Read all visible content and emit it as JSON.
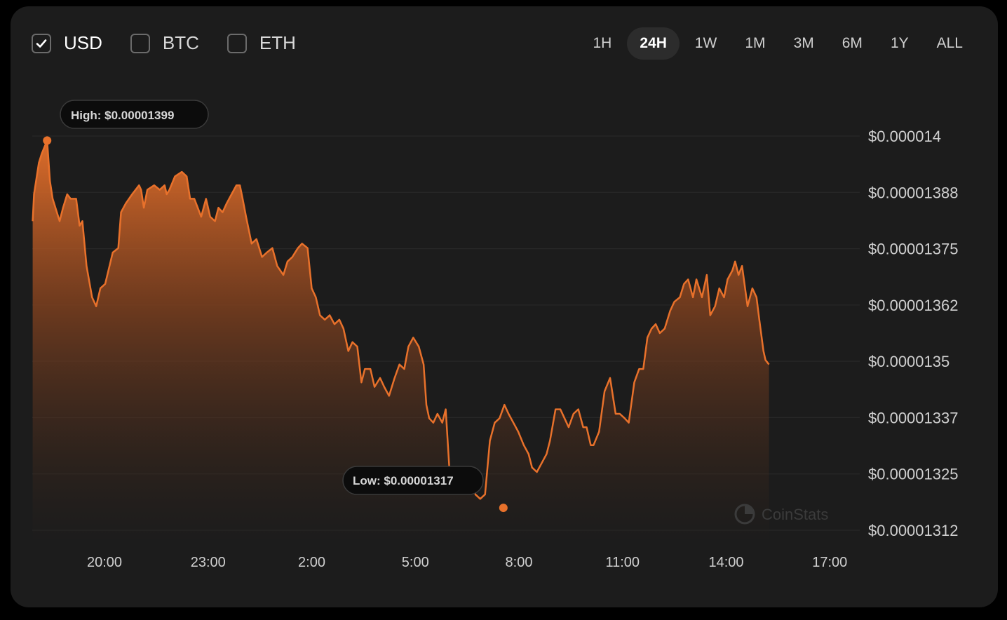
{
  "currencies": [
    {
      "label": "USD",
      "checked": true
    },
    {
      "label": "BTC",
      "checked": false
    },
    {
      "label": "ETH",
      "checked": false
    }
  ],
  "ranges": [
    "1H",
    "24H",
    "1W",
    "1M",
    "3M",
    "6M",
    "1Y",
    "ALL"
  ],
  "active_range": "24H",
  "watermark": "CoinStats",
  "colors": {
    "accent": "#e8712b",
    "card": "#1c1c1c",
    "background": "#000000"
  },
  "chart_data": {
    "type": "area",
    "title": "",
    "xlabel": "",
    "ylabel": "",
    "x_unit": "hours since 20:00",
    "x_ticks": [
      "20:00",
      "23:00",
      "2:00",
      "5:00",
      "8:00",
      "11:00",
      "14:00",
      "17:00"
    ],
    "y_ticks": [
      "$0.000014",
      "$0.00001388",
      "$0.00001375",
      "$0.00001362",
      "$0.0000135",
      "$0.00001337",
      "$0.00001325",
      "$0.00001312"
    ],
    "ylim": [
      1.312e-05,
      1.4e-05
    ],
    "high_label": "High: $0.00001399",
    "low_label": "Low: $0.00001317",
    "high": {
      "x": -1.66,
      "y": 1.399e-05
    },
    "low": {
      "x": 11.55,
      "y": 1.317e-05
    },
    "grid": true,
    "series": [
      {
        "color": "#e8712b",
        "points": [
          [
            -2.08,
            1.381e-05
          ],
          [
            -2.04,
            1.387e-05
          ],
          [
            -1.9,
            1.394e-05
          ],
          [
            -1.82,
            1.396e-05
          ],
          [
            -1.66,
            1.399e-05
          ],
          [
            -1.58,
            1.39e-05
          ],
          [
            -1.5,
            1.386e-05
          ],
          [
            -1.3,
            1.381e-05
          ],
          [
            -1.2,
            1.384e-05
          ],
          [
            -1.08,
            1.387e-05
          ],
          [
            -0.98,
            1.386e-05
          ],
          [
            -0.82,
            1.386e-05
          ],
          [
            -0.72,
            1.38e-05
          ],
          [
            -0.64,
            1.381e-05
          ],
          [
            -0.52,
            1.371e-05
          ],
          [
            -0.36,
            1.364e-05
          ],
          [
            -0.24,
            1.362e-05
          ],
          [
            -0.12,
            1.366e-05
          ],
          [
            0.02,
            1.367e-05
          ],
          [
            0.24,
            1.374e-05
          ],
          [
            0.4,
            1.375e-05
          ],
          [
            0.48,
            1.383e-05
          ],
          [
            0.62,
            1.385e-05
          ],
          [
            0.8,
            1.387e-05
          ],
          [
            1.0,
            1.389e-05
          ],
          [
            1.06,
            1.388e-05
          ],
          [
            1.14,
            1.384e-05
          ],
          [
            1.24,
            1.388e-05
          ],
          [
            1.44,
            1.389e-05
          ],
          [
            1.6,
            1.388e-05
          ],
          [
            1.74,
            1.389e-05
          ],
          [
            1.8,
            1.387e-05
          ],
          [
            1.88,
            1.388e-05
          ],
          [
            2.04,
            1.391e-05
          ],
          [
            2.24,
            1.392e-05
          ],
          [
            2.38,
            1.391e-05
          ],
          [
            2.48,
            1.386e-05
          ],
          [
            2.6,
            1.386e-05
          ],
          [
            2.8,
            1.382e-05
          ],
          [
            2.94,
            1.386e-05
          ],
          [
            3.06,
            1.382e-05
          ],
          [
            3.2,
            1.381e-05
          ],
          [
            3.3,
            1.384e-05
          ],
          [
            3.42,
            1.383e-05
          ],
          [
            3.54,
            1.385e-05
          ],
          [
            3.68,
            1.387e-05
          ],
          [
            3.82,
            1.389e-05
          ],
          [
            3.92,
            1.389e-05
          ],
          [
            4.0,
            1.386e-05
          ],
          [
            4.1,
            1.382e-05
          ],
          [
            4.26,
            1.376e-05
          ],
          [
            4.4,
            1.377e-05
          ],
          [
            4.56,
            1.373e-05
          ],
          [
            4.7,
            1.374e-05
          ],
          [
            4.86,
            1.375e-05
          ],
          [
            5.0,
            1.371e-05
          ],
          [
            5.18,
            1.369e-05
          ],
          [
            5.3,
            1.372e-05
          ],
          [
            5.44,
            1.373e-05
          ],
          [
            5.6,
            1.375e-05
          ],
          [
            5.72,
            1.376e-05
          ],
          [
            5.88,
            1.375e-05
          ],
          [
            6.0,
            1.366e-05
          ],
          [
            6.12,
            1.364e-05
          ],
          [
            6.24,
            1.36e-05
          ],
          [
            6.38,
            1.359e-05
          ],
          [
            6.52,
            1.36e-05
          ],
          [
            6.66,
            1.358e-05
          ],
          [
            6.8,
            1.359e-05
          ],
          [
            6.92,
            1.357e-05
          ],
          [
            7.06,
            1.352e-05
          ],
          [
            7.18,
            1.354e-05
          ],
          [
            7.32,
            1.353e-05
          ],
          [
            7.44,
            1.345e-05
          ],
          [
            7.54,
            1.348e-05
          ],
          [
            7.7,
            1.348e-05
          ],
          [
            7.82,
            1.344e-05
          ],
          [
            7.98,
            1.346e-05
          ],
          [
            8.1,
            1.344e-05
          ],
          [
            8.24,
            1.342e-05
          ],
          [
            8.4,
            1.346e-05
          ],
          [
            8.54,
            1.349e-05
          ],
          [
            8.68,
            1.348e-05
          ],
          [
            8.8,
            1.353e-05
          ],
          [
            8.94,
            1.355e-05
          ],
          [
            9.1,
            1.353e-05
          ],
          [
            9.24,
            1.349e-05
          ],
          [
            9.32,
            1.34e-05
          ],
          [
            9.4,
            1.337e-05
          ],
          [
            9.52,
            1.336e-05
          ],
          [
            9.64,
            1.338e-05
          ],
          [
            9.78,
            1.336e-05
          ],
          [
            9.88,
            1.339e-05
          ],
          [
            10.0,
            1.324e-05
          ],
          [
            10.1,
            1.321e-05
          ],
          [
            10.2,
            1.323e-05
          ],
          [
            10.36,
            1.326e-05
          ],
          [
            10.52,
            1.325e-05
          ],
          [
            10.62,
            1.326e-05
          ],
          [
            10.74,
            1.32e-05
          ],
          [
            10.88,
            1.319e-05
          ],
          [
            11.02,
            1.32e-05
          ],
          [
            11.16,
            1.332e-05
          ],
          [
            11.3,
            1.336e-05
          ],
          [
            11.44,
            1.337e-05
          ],
          [
            11.58,
            1.34e-05
          ],
          [
            11.7,
            1.338e-05
          ],
          [
            11.84,
            1.336e-05
          ],
          [
            11.98,
            1.334e-05
          ],
          [
            12.14,
            1.331e-05
          ],
          [
            12.28,
            1.329e-05
          ],
          [
            12.38,
            1.326e-05
          ],
          [
            12.52,
            1.325e-05
          ],
          [
            12.66,
            1.327e-05
          ],
          [
            12.8,
            1.329e-05
          ],
          [
            12.9,
            1.332e-05
          ],
          [
            13.06,
            1.339e-05
          ],
          [
            13.2,
            1.339e-05
          ],
          [
            13.32,
            1.337e-05
          ],
          [
            13.44,
            1.335e-05
          ],
          [
            13.58,
            1.338e-05
          ],
          [
            13.72,
            1.339e-05
          ],
          [
            13.86,
            1.335e-05
          ],
          [
            13.96,
            1.335e-05
          ],
          [
            14.08,
            1.331e-05
          ],
          [
            14.16,
            1.331e-05
          ],
          [
            14.32,
            1.334e-05
          ],
          [
            14.48,
            1.343e-05
          ],
          [
            14.64,
            1.346e-05
          ],
          [
            14.8,
            1.338e-05
          ],
          [
            14.92,
            1.338e-05
          ],
          [
            15.06,
            1.337e-05
          ],
          [
            15.18,
            1.336e-05
          ],
          [
            15.34,
            1.345e-05
          ],
          [
            15.48,
            1.348e-05
          ],
          [
            15.6,
            1.348e-05
          ],
          [
            15.72,
            1.355e-05
          ],
          [
            15.84,
            1.357e-05
          ],
          [
            15.96,
            1.358e-05
          ],
          [
            16.08,
            1.356e-05
          ],
          [
            16.22,
            1.357e-05
          ],
          [
            16.38,
            1.361e-05
          ],
          [
            16.5,
            1.363e-05
          ],
          [
            16.66,
            1.364e-05
          ],
          [
            16.78,
            1.367e-05
          ],
          [
            16.9,
            1.368e-05
          ],
          [
            17.04,
            1.364e-05
          ],
          [
            17.14,
            1.368e-05
          ],
          [
            17.3,
            1.364e-05
          ],
          [
            17.44,
            1.369e-05
          ],
          [
            17.54,
            1.36e-05
          ],
          [
            17.68,
            1.362e-05
          ],
          [
            17.8,
            1.366e-05
          ],
          [
            17.94,
            1.364e-05
          ],
          [
            18.04,
            1.368e-05
          ],
          [
            18.18,
            1.37e-05
          ],
          [
            18.26,
            1.372e-05
          ],
          [
            18.36,
            1.369e-05
          ],
          [
            18.46,
            1.371e-05
          ],
          [
            18.62,
            1.362e-05
          ],
          [
            18.76,
            1.366e-05
          ],
          [
            18.88,
            1.364e-05
          ],
          [
            18.96,
            1.359e-05
          ],
          [
            19.08,
            1.352e-05
          ],
          [
            19.14,
            1.35e-05
          ],
          [
            19.24,
            1.349e-05
          ]
        ]
      }
    ]
  }
}
